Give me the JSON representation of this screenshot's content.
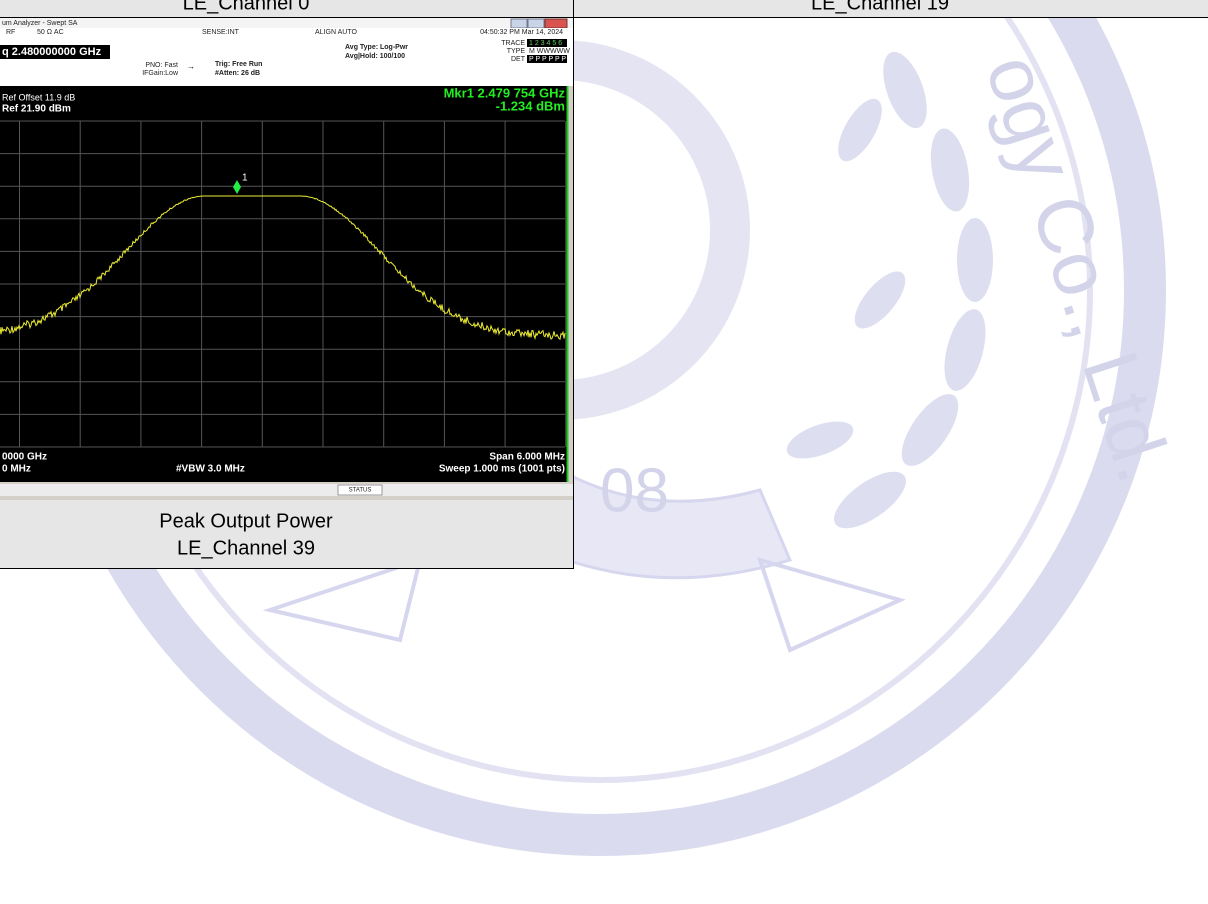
{
  "captions": {
    "top_left": "LE_Channel 0",
    "top_right": "LE_Channel 19",
    "bottom_title": "Peak Output Power",
    "bottom_channel": "LE_Channel 39"
  },
  "analyzer": {
    "window_title": "um Analyzer - Swept SA",
    "status_row": [
      "RF",
      "50 Ω  AC",
      "SENSE:INT",
      "ALIGN AUTO",
      "04:50:32 PM Mar 14, 2024"
    ],
    "center_freq": "q 2.480000000 GHz",
    "pno": "PNO: Fast",
    "ifgain": "IFGain:Low",
    "trig": "Trig: Free Run",
    "atten": "#Atten: 26 dB",
    "avg_type": "Avg Type: Log-Pwr",
    "avg_hold": "Avg|Hold: 100/100",
    "trace_label": "TRACE",
    "trace_nums": "1 2 3 4 5 6",
    "type_label": "TYPE",
    "type_value": "M WWWWW",
    "det_label": "DET",
    "det_value": "P P P P P P",
    "ref_offset": "Ref Offset 11.9 dB",
    "ref_level": "Ref 21.90 dBm",
    "marker_freq": "Mkr1 2.479 754 GHz",
    "marker_level": "-1.234 dBm",
    "marker_id": "1",
    "center_bottom": "0000 GHz",
    "rbw": "0 MHz",
    "vbw": "#VBW 3.0 MHz",
    "span": "Span 6.000 MHz",
    "sweep": "Sweep  1.000 ms (1001 pts)",
    "status": "STATUS"
  },
  "watermark": {
    "company": "ogy Co., Ltd.",
    "year": "08"
  }
}
